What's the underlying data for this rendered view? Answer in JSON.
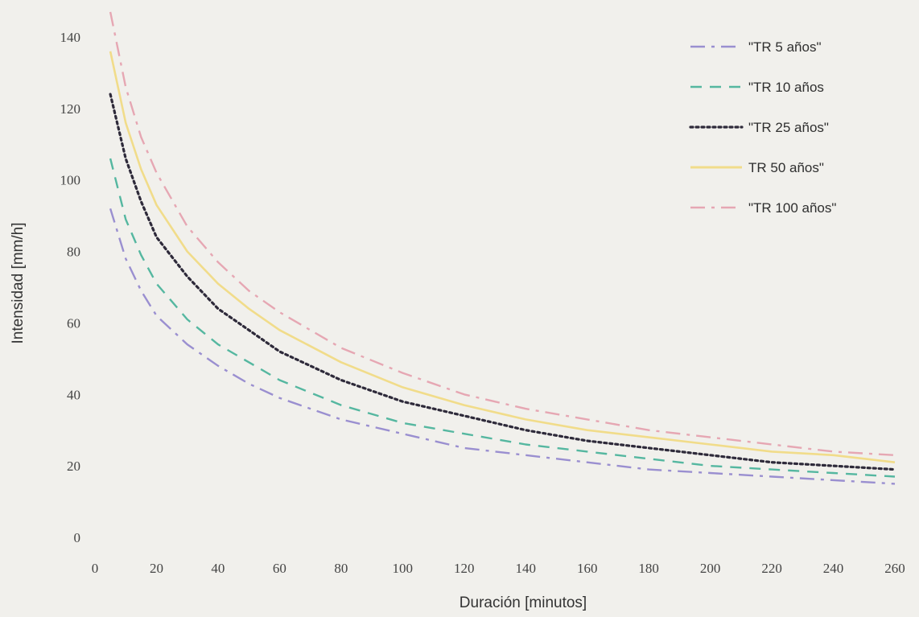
{
  "chart_data": {
    "type": "line",
    "title": "",
    "xlabel": "Duración [minutos]",
    "ylabel": "Intensidad [mm/h]",
    "xlim": [
      0,
      260
    ],
    "ylim": [
      0,
      140
    ],
    "x_ticks": [
      0,
      20,
      40,
      60,
      80,
      100,
      120,
      140,
      160,
      180,
      200,
      220,
      240,
      260
    ],
    "y_ticks": [
      0,
      20,
      40,
      60,
      80,
      100,
      120,
      140
    ],
    "grid": false,
    "legend_position": "top-right",
    "x": [
      5,
      10,
      15,
      20,
      30,
      40,
      50,
      60,
      80,
      100,
      120,
      140,
      160,
      180,
      200,
      220,
      240,
      260
    ],
    "series": [
      {
        "name": "\"TR 5 años\"",
        "color": "#9a8fd0",
        "dash": "dashdot",
        "values": [
          92,
          78,
          69,
          62,
          54,
          48,
          43,
          39,
          33,
          29,
          25,
          23,
          21,
          19,
          18,
          17,
          16,
          15
        ]
      },
      {
        "name": "\"TR 10 años",
        "color": "#55b7a0",
        "dash": "dashed",
        "values": [
          106,
          89,
          79,
          71,
          61,
          54,
          49,
          44,
          37,
          32,
          29,
          26,
          24,
          22,
          20,
          19,
          18,
          17
        ]
      },
      {
        "name": "\"TR 25 años\"",
        "color": "#2e2a3a",
        "dash": "dotted",
        "values": [
          124,
          106,
          94,
          84,
          73,
          64,
          58,
          52,
          44,
          38,
          34,
          30,
          27,
          25,
          23,
          21,
          20,
          19
        ]
      },
      {
        "name": "TR 50 años\"",
        "color": "#f1dc8a",
        "dash": "solid",
        "values": [
          136,
          116,
          103,
          93,
          80,
          71,
          64,
          58,
          49,
          42,
          37,
          33,
          30,
          28,
          26,
          24,
          23,
          21
        ]
      },
      {
        "name": "\"TR 100 años\"",
        "color": "#e6a7b3",
        "dash": "dashdot",
        "values": [
          147,
          126,
          112,
          102,
          87,
          77,
          69,
          63,
          53,
          46,
          40,
          36,
          33,
          30,
          28,
          26,
          24,
          23
        ]
      }
    ]
  }
}
